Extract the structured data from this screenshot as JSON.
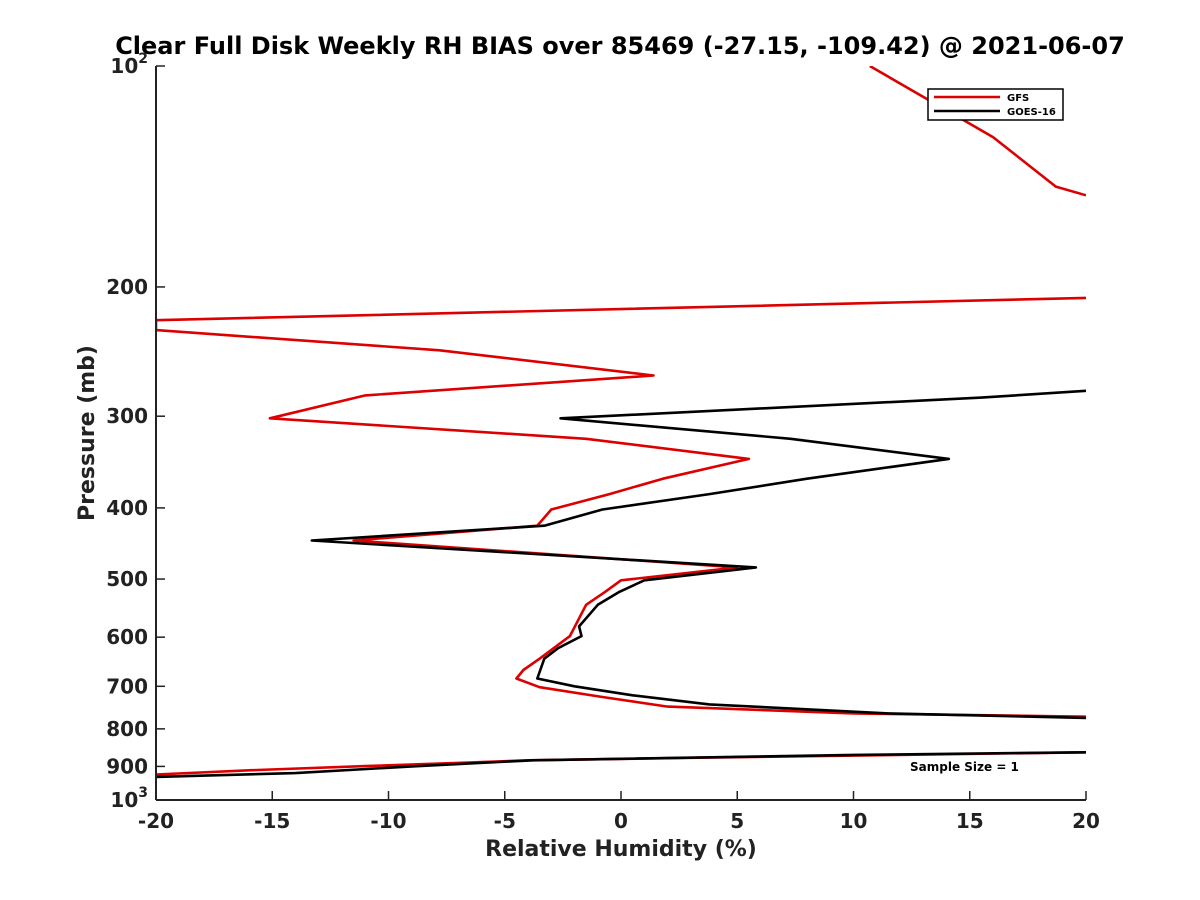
{
  "chart_data": {
    "type": "line",
    "title": "Clear Full Disk Weekly RH BIAS over 85469 (-27.15, -109.42) @ 2021-06-07",
    "xlabel": "Relative Humidity (%)",
    "ylabel": "Pressure (mb)",
    "xlim": [
      -20,
      20
    ],
    "ylim": [
      100,
      1000
    ],
    "y_scale": "log",
    "y_reversed": true,
    "x_ticks": [
      -20,
      -15,
      -10,
      -5,
      0,
      5,
      10,
      15,
      20
    ],
    "x_tick_labels": [
      "-20",
      "-15",
      "-10",
      "-5",
      "0",
      "5",
      "10",
      "15",
      "20"
    ],
    "y_ticks": [
      100,
      200,
      300,
      400,
      500,
      600,
      700,
      800,
      900,
      1000
    ],
    "y_tick_labels": [
      {
        "base": "10",
        "exp": "2"
      },
      {
        "base": "200",
        "exp": ""
      },
      {
        "base": "300",
        "exp": ""
      },
      {
        "base": "400",
        "exp": ""
      },
      {
        "base": "500",
        "exp": ""
      },
      {
        "base": "600",
        "exp": ""
      },
      {
        "base": "700",
        "exp": ""
      },
      {
        "base": "800",
        "exp": ""
      },
      {
        "base": "900",
        "exp": ""
      },
      {
        "base": "10",
        "exp": "3"
      }
    ],
    "grid": false,
    "legend_position": "top-right",
    "annotation": "Sample Size = 1",
    "series": [
      {
        "name": "GFS",
        "color": "#dd0000",
        "points": [
          [
            10.7,
            100
          ],
          [
            16,
            125
          ],
          [
            18.7,
            146
          ],
          [
            20,
            150
          ],
          null,
          [
            20,
            207
          ],
          [
            -20,
            222
          ],
          [
            -20,
            229
          ],
          [
            -7.8,
            244
          ],
          [
            1.4,
            264
          ],
          [
            -11,
            281
          ],
          [
            -15.1,
            302
          ],
          [
            -1.5,
            322
          ],
          [
            5.5,
            343
          ],
          [
            1.8,
            365
          ],
          [
            -0.5,
            383
          ],
          [
            -3,
            402
          ],
          [
            -3.6,
            423
          ],
          [
            -11.5,
            443
          ],
          [
            5,
            482
          ],
          [
            0,
            502
          ],
          [
            -0.7,
            521
          ],
          [
            -1.5,
            542
          ],
          [
            -2.2,
            598
          ],
          [
            -3.5,
            642
          ],
          [
            -4.2,
            665
          ],
          [
            -4.5,
            683
          ],
          [
            -3.5,
            702
          ],
          [
            -0.8,
            724
          ],
          [
            2,
            746
          ],
          [
            10,
            762
          ],
          [
            20,
            770
          ],
          null,
          [
            20,
            861
          ],
          [
            3,
            876
          ],
          [
            -4,
            883
          ],
          [
            -7,
            890
          ],
          [
            -11,
            899
          ],
          [
            -16,
            911
          ],
          [
            -20,
            923
          ]
        ]
      },
      {
        "name": "GOES-16",
        "color": "#000000",
        "points": [
          [
            20,
            277
          ],
          [
            15.5,
            283
          ],
          [
            -2.6,
            302
          ],
          [
            7.3,
            322
          ],
          [
            14.1,
            343
          ],
          [
            8,
            365
          ],
          [
            3.8,
            383
          ],
          [
            -0.8,
            402
          ],
          [
            -3.3,
            423
          ],
          [
            -13.3,
            443
          ],
          [
            5.8,
            482
          ],
          [
            1,
            502
          ],
          [
            -0.1,
            521
          ],
          [
            -1,
            542
          ],
          [
            -1.8,
            580
          ],
          [
            -1.7,
            598
          ],
          [
            -2.7,
            621
          ],
          [
            -3.3,
            642
          ],
          [
            -3.6,
            683
          ],
          [
            -2,
            700
          ],
          [
            0.5,
            720
          ],
          [
            3.8,
            741
          ],
          [
            11.5,
            762
          ],
          [
            20,
            773
          ],
          null,
          [
            20,
            861
          ],
          [
            10,
            868
          ],
          [
            -3.8,
            883
          ],
          [
            -9,
            900
          ],
          [
            -14,
            919
          ],
          [
            -20,
            930
          ]
        ]
      }
    ]
  }
}
